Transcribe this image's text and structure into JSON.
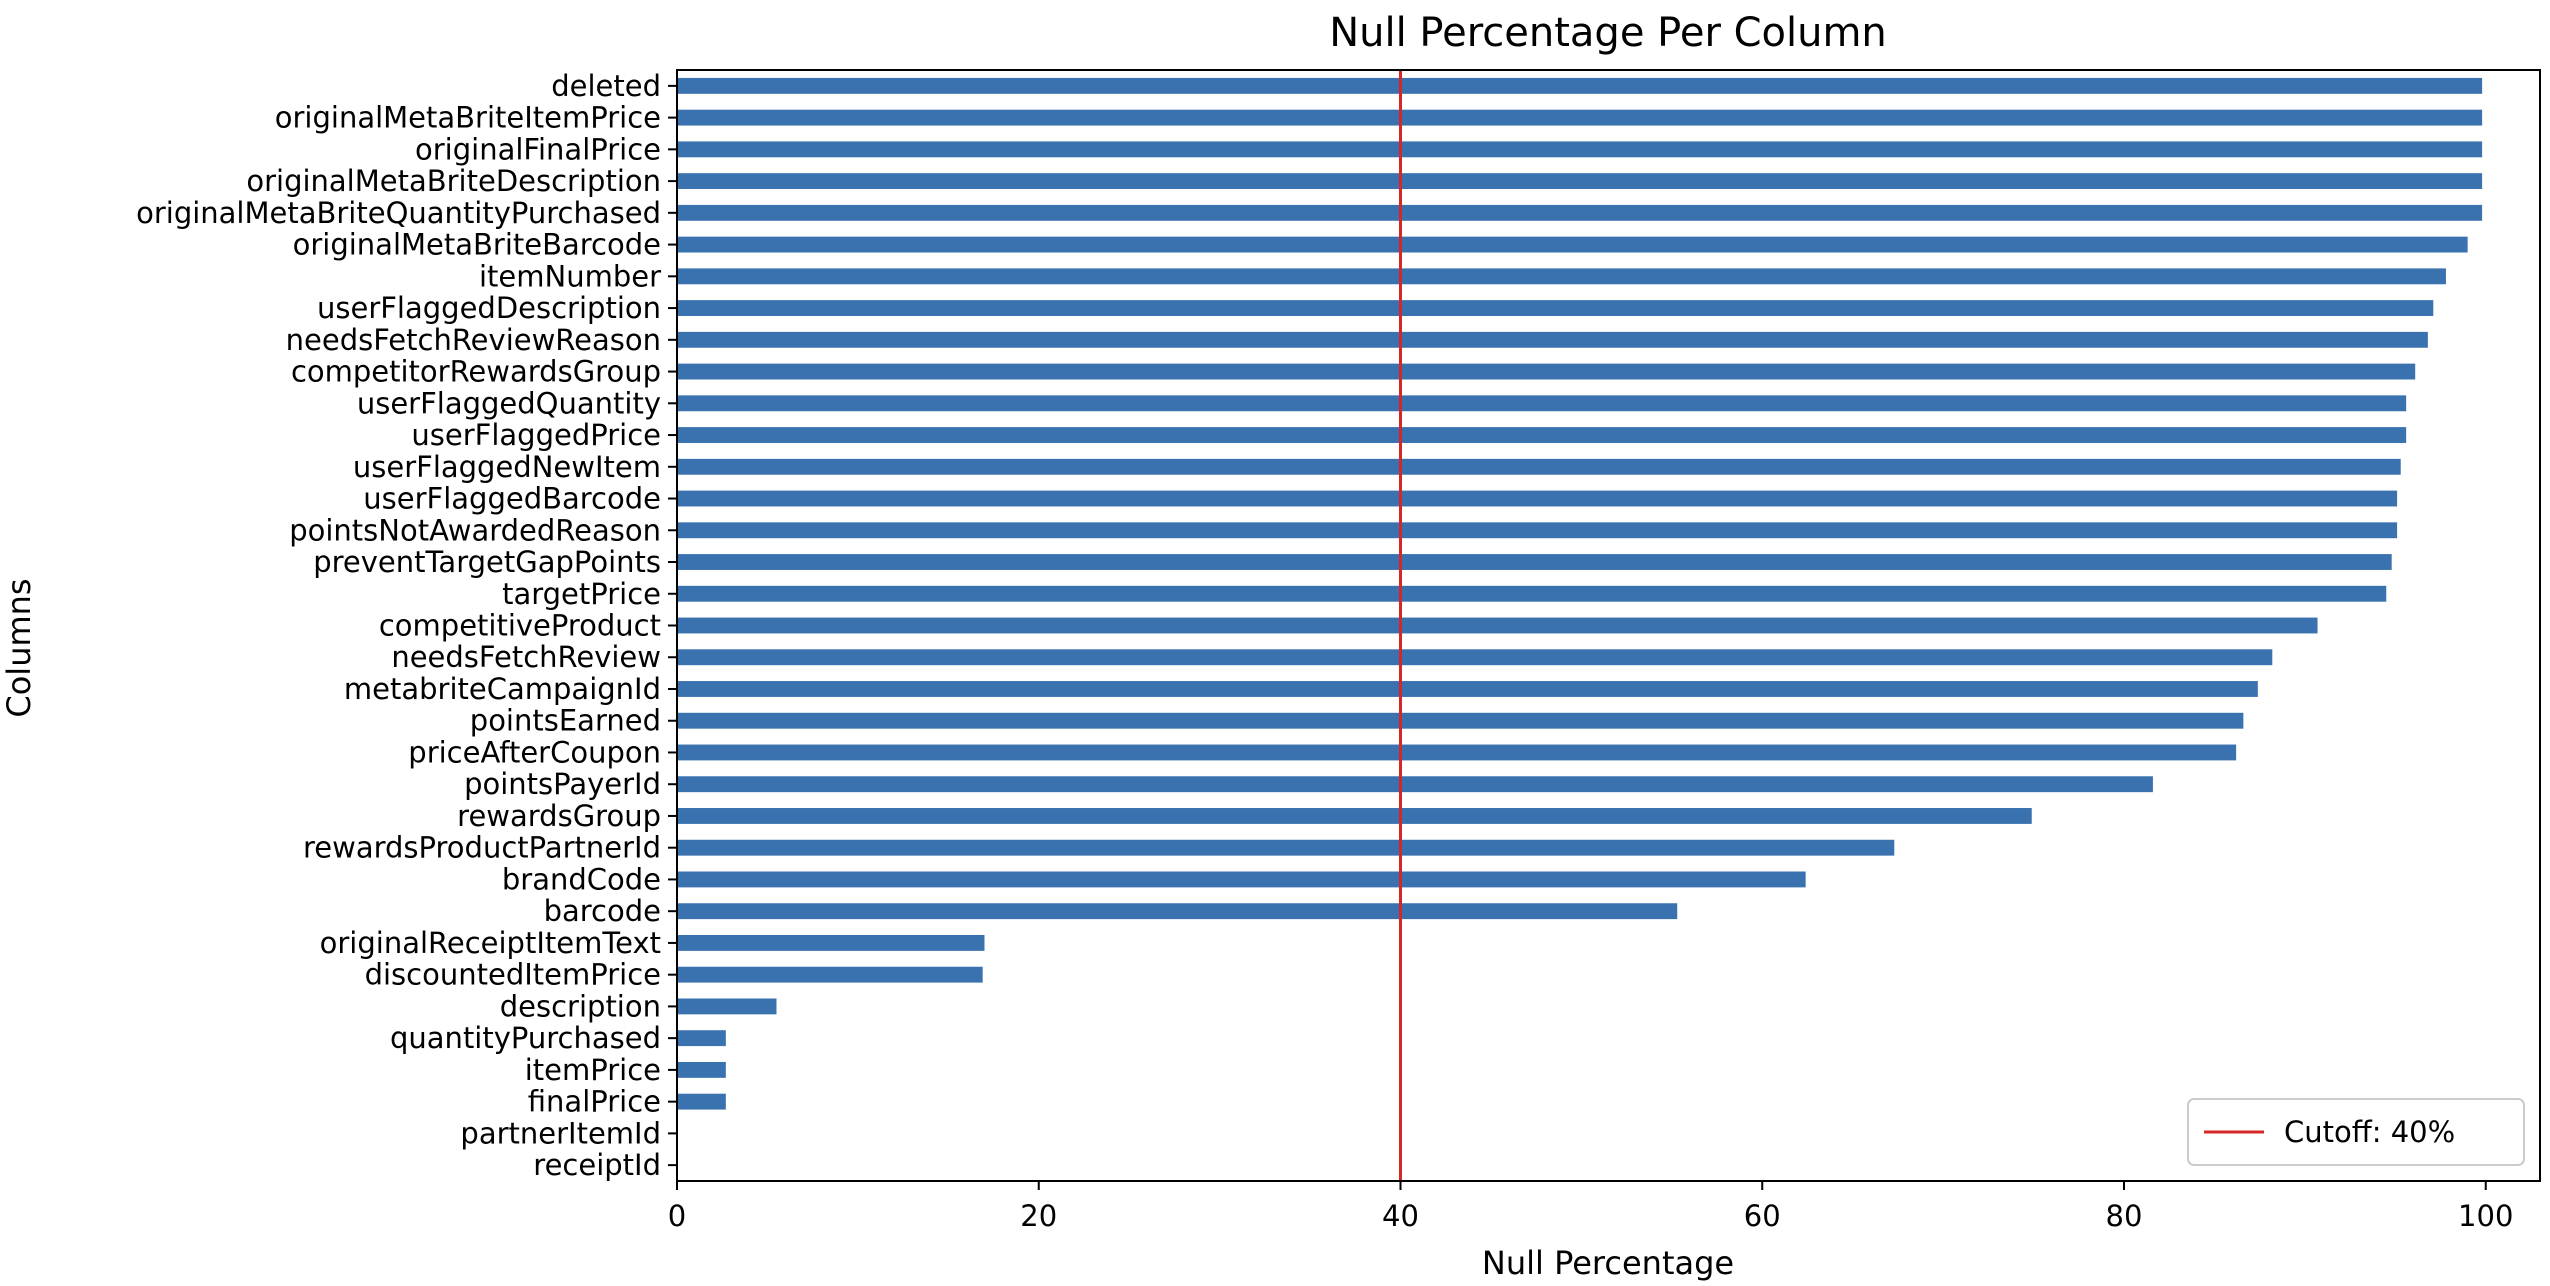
{
  "chart_data": {
    "type": "bar",
    "orientation": "horizontal",
    "title": "Null Percentage Per Column",
    "xlabel": "Null Percentage",
    "ylabel": "Columns",
    "xlim": [
      0,
      103
    ],
    "xticks": [
      0,
      20,
      40,
      60,
      80,
      100
    ],
    "categories": [
      "deleted",
      "originalMetaBriteItemPrice",
      "originalFinalPrice",
      "originalMetaBriteDescription",
      "originalMetaBriteQuantityPurchased",
      "originalMetaBriteBarcode",
      "itemNumber",
      "userFlaggedDescription",
      "needsFetchReviewReason",
      "competitorRewardsGroup",
      "userFlaggedQuantity",
      "userFlaggedPrice",
      "userFlaggedNewItem",
      "userFlaggedBarcode",
      "pointsNotAwardedReason",
      "preventTargetGapPoints",
      "targetPrice",
      "competitiveProduct",
      "needsFetchReview",
      "metabriteCampaignId",
      "pointsEarned",
      "priceAfterCoupon",
      "pointsPayerId",
      "rewardsGroup",
      "rewardsProductPartnerId",
      "brandCode",
      "barcode",
      "originalReceiptItemText",
      "discountedItemPrice",
      "description",
      "quantityPurchased",
      "itemPrice",
      "finalPrice",
      "partnerItemId",
      "receiptId"
    ],
    "values": [
      99.8,
      99.8,
      99.8,
      99.8,
      99.8,
      99.0,
      97.8,
      97.1,
      96.8,
      96.1,
      95.6,
      95.6,
      95.3,
      95.1,
      95.1,
      94.8,
      94.5,
      90.7,
      88.2,
      87.4,
      86.6,
      86.2,
      81.6,
      74.9,
      67.3,
      62.4,
      55.3,
      17.0,
      16.9,
      5.5,
      2.7,
      2.7,
      2.7,
      0.0,
      0.0
    ],
    "bar_color": "#3a72b0",
    "reference_line": {
      "value": 40,
      "color": "#d62728",
      "label": "Cutoff: 40%"
    },
    "legend": {
      "position": "lower-right",
      "entries": [
        "Cutoff: 40%"
      ]
    },
    "grid": false
  }
}
